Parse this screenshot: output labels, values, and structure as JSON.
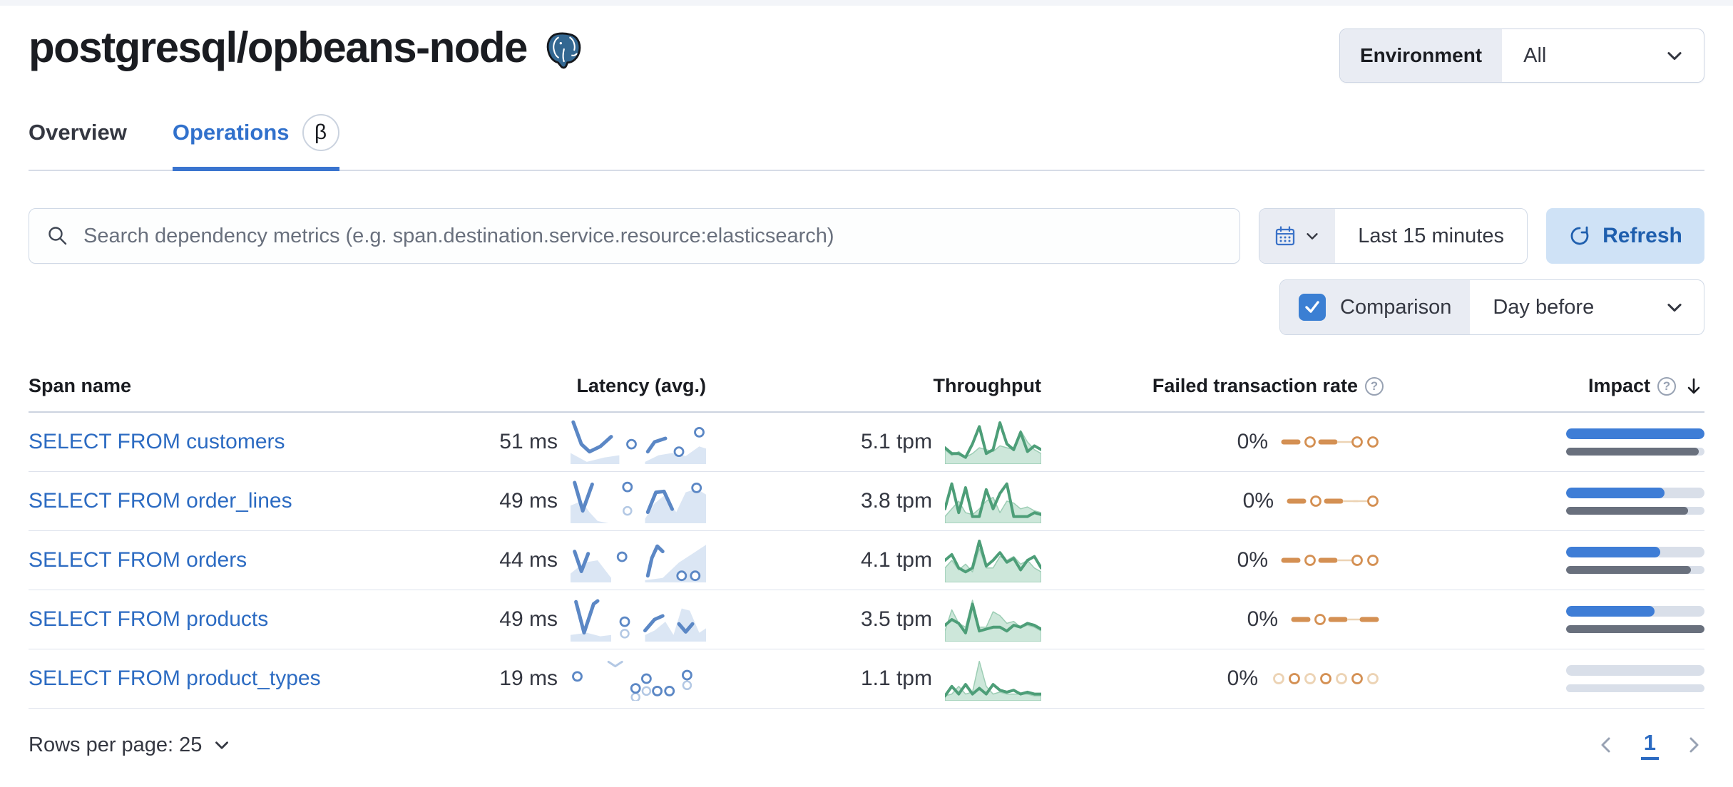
{
  "page": {
    "title": "postgresql/opbeans-node"
  },
  "environment": {
    "label": "Environment",
    "value": "All"
  },
  "tabs": {
    "overview": "Overview",
    "operations": "Operations",
    "beta": "β"
  },
  "toolbar": {
    "search_placeholder": "Search dependency metrics (e.g. span.destination.service.resource:elasticsearch)",
    "time_range": "Last 15 minutes",
    "refresh": "Refresh",
    "comparison_label": "Comparison",
    "comparison_checked": true,
    "comparison_value": "Day before"
  },
  "table": {
    "headers": {
      "span_name": "Span name",
      "latency": "Latency (avg.)",
      "throughput": "Throughput",
      "ftr": "Failed transaction rate",
      "impact": "Impact"
    },
    "rows": [
      {
        "name": "SELECT FROM customers",
        "latency_value": "51 ms",
        "throughput_value": "5.1 tpm",
        "ftr_value": "0%",
        "impact_current": 100,
        "impact_previous": 96,
        "latency_spark": {
          "areas": [
            [
              [
                0,
                0.75
              ],
              [
                0.12,
                0.95
              ],
              [
                0.25,
                0.85
              ],
              [
                0.36,
                0.8
              ],
              [
                0.36,
                1
              ],
              [
                0,
                1
              ]
            ],
            [
              [
                0.55,
                0.95
              ],
              [
                0.65,
                0.8
              ],
              [
                0.75,
                0.75
              ],
              [
                0.85,
                0.82
              ],
              [
                0.95,
                0.6
              ],
              [
                1,
                0.65
              ],
              [
                1,
                1
              ],
              [
                0.55,
                1
              ]
            ]
          ],
          "lines": [
            [
              [
                0.02,
                0.05
              ],
              [
                0.08,
                0.55
              ],
              [
                0.14,
                0.72
              ],
              [
                0.22,
                0.6
              ],
              [
                0.3,
                0.38
              ]
            ],
            [
              [
                0.57,
                0.72
              ],
              [
                0.62,
                0.5
              ],
              [
                0.7,
                0.42
              ]
            ]
          ],
          "dots": [
            [
              0.45,
              0.55
            ],
            [
              0.8,
              0.72
            ],
            [
              0.95,
              0.28
            ]
          ],
          "faint_dots": [],
          "faint_lines": []
        },
        "throughput_spark": {
          "current": [
            0.35,
            0.2,
            0.2,
            0.1,
            0.45,
            0.9,
            0.2,
            0.3,
            1.0,
            0.45,
            0.3,
            0.75,
            0.25,
            0.4,
            0.3
          ],
          "comparison": [
            0.3,
            0.15,
            0.25,
            0.1,
            0.2,
            0.35,
            0.3,
            0.25,
            0.4,
            0.35,
            0.3,
            0.8,
            0.5,
            0.3,
            0.2
          ]
        },
        "ftr_spark": [
          "dash",
          "ring",
          "dash",
          "conn",
          "ring",
          "ring"
        ]
      },
      {
        "name": "SELECT FROM order_lines",
        "latency_value": "49 ms",
        "throughput_value": "3.8 tpm",
        "ftr_value": "0%",
        "impact_current": 71,
        "impact_previous": 88,
        "latency_spark": {
          "areas": [
            [
              [
                0,
                0.6
              ],
              [
                0.08,
                0.5
              ],
              [
                0.14,
                0.75
              ],
              [
                0.2,
                0.95
              ],
              [
                0.28,
                1
              ],
              [
                0,
                1
              ]
            ],
            [
              [
                0.55,
                0.9
              ],
              [
                0.62,
                0.55
              ],
              [
                0.7,
                0.35
              ],
              [
                0.78,
                0.75
              ],
              [
                0.85,
                0.3
              ],
              [
                0.93,
                0.22
              ],
              [
                1,
                0.35
              ],
              [
                1,
                1
              ],
              [
                0.55,
                1
              ]
            ]
          ],
          "lines": [
            [
              [
                0.03,
                0.08
              ],
              [
                0.09,
                0.72
              ],
              [
                0.16,
                0.12
              ]
            ],
            [
              [
                0.57,
                0.75
              ],
              [
                0.63,
                0.3
              ],
              [
                0.69,
                0.28
              ],
              [
                0.75,
                0.68
              ]
            ]
          ],
          "dots": [
            [
              0.42,
              0.18
            ],
            [
              0.93,
              0.2
            ]
          ],
          "faint_dots": [
            [
              0.42,
              0.72
            ]
          ],
          "faint_lines": []
        },
        "throughput_spark": {
          "current": [
            0.3,
            0.95,
            0.2,
            0.85,
            0.1,
            0.1,
            0.8,
            0.3,
            0.7,
            0.95,
            0.1,
            0.1,
            0.1,
            0.2,
            0.15
          ],
          "comparison": [
            0.1,
            0.3,
            0.5,
            0.2,
            0.15,
            0.3,
            0.5,
            0.6,
            0.2,
            0.5,
            0.45,
            0.3,
            0.35,
            0.25,
            0.2
          ]
        },
        "ftr_spark": [
          "dash",
          "ring",
          "dash",
          "conn",
          "conn",
          "ring"
        ]
      },
      {
        "name": "SELECT FROM orders",
        "latency_value": "44 ms",
        "throughput_value": "4.1 tpm",
        "ftr_value": "0%",
        "impact_current": 68,
        "impact_previous": 90,
        "latency_spark": {
          "areas": [
            [
              [
                0,
                0.8
              ],
              [
                0.1,
                0.55
              ],
              [
                0.2,
                0.5
              ],
              [
                0.3,
                0.9
              ],
              [
                0.3,
                1
              ],
              [
                0,
                1
              ]
            ],
            [
              [
                0.55,
                0.95
              ],
              [
                0.68,
                0.9
              ],
              [
                0.8,
                0.55
              ],
              [
                0.9,
                0.35
              ],
              [
                1,
                0.15
              ],
              [
                1,
                1
              ],
              [
                0.55,
                1
              ]
            ]
          ],
          "lines": [
            [
              [
                0.03,
                0.3
              ],
              [
                0.08,
                0.75
              ],
              [
                0.13,
                0.35
              ]
            ],
            [
              [
                0.57,
                0.85
              ],
              [
                0.6,
                0.45
              ],
              [
                0.64,
                0.18
              ],
              [
                0.68,
                0.3
              ]
            ]
          ],
          "dots": [
            [
              0.38,
              0.42
            ],
            [
              0.82,
              0.85
            ],
            [
              0.92,
              0.85
            ]
          ],
          "faint_dots": [],
          "faint_lines": []
        },
        "throughput_spark": {
          "current": [
            0.5,
            0.65,
            0.3,
            0.2,
            0.3,
            1.0,
            0.35,
            0.5,
            0.7,
            0.45,
            0.55,
            0.25,
            0.5,
            0.6,
            0.3
          ],
          "comparison": [
            0.3,
            0.5,
            0.25,
            0.4,
            0.2,
            0.8,
            0.3,
            0.3,
            0.6,
            0.5,
            0.6,
            0.4,
            0.5,
            0.3,
            0.2
          ]
        },
        "ftr_spark": [
          "dash",
          "ring",
          "dash",
          "conn",
          "ring",
          "ring"
        ]
      },
      {
        "name": "SELECT FROM products",
        "latency_value": "49 ms",
        "throughput_value": "3.5 tpm",
        "ftr_value": "0%",
        "impact_current": 64,
        "impact_previous": 100,
        "latency_spark": {
          "areas": [
            [
              [
                0,
                0.85
              ],
              [
                0.12,
                0.8
              ],
              [
                0.22,
                0.88
              ],
              [
                0.3,
                0.85
              ],
              [
                0.3,
                1
              ],
              [
                0,
                1
              ]
            ],
            [
              [
                0.55,
                0.85
              ],
              [
                0.62,
                0.75
              ],
              [
                0.7,
                0.55
              ],
              [
                0.76,
                0.85
              ],
              [
                0.82,
                0.25
              ],
              [
                0.88,
                0.3
              ],
              [
                0.95,
                0.8
              ],
              [
                1,
                0.7
              ],
              [
                1,
                1
              ],
              [
                0.55,
                1
              ]
            ]
          ],
          "lines": [
            [
              [
                0.04,
                0.1
              ],
              [
                0.1,
                0.8
              ],
              [
                0.17,
                0.15
              ],
              [
                0.2,
                0.08
              ]
            ],
            [
              [
                0.55,
                0.75
              ],
              [
                0.62,
                0.5
              ],
              [
                0.68,
                0.42
              ]
            ],
            [
              [
                0.8,
                0.6
              ],
              [
                0.85,
                0.78
              ],
              [
                0.9,
                0.6
              ]
            ]
          ],
          "dots": [
            [
              0.4,
              0.55
            ]
          ],
          "faint_dots": [
            [
              0.4,
              0.82
            ]
          ],
          "faint_lines": []
        },
        "throughput_spark": {
          "current": [
            0.35,
            0.5,
            0.4,
            0.15,
            0.9,
            0.2,
            0.25,
            0.3,
            0.3,
            0.2,
            0.35,
            0.3,
            0.4,
            0.35,
            0.25
          ],
          "comparison": [
            0.2,
            0.75,
            0.4,
            0.3,
            1.0,
            0.3,
            0.3,
            0.7,
            0.6,
            0.4,
            0.45,
            0.3,
            0.35,
            0.3,
            0.2
          ]
        },
        "ftr_spark": [
          "dash",
          "ring",
          "dash",
          "conn",
          "dash"
        ]
      },
      {
        "name": "SELECT FROM product_types",
        "latency_value": "19 ms",
        "throughput_value": "1.1 tpm",
        "ftr_value": "0%",
        "impact_current": 0,
        "impact_previous": 0,
        "latency_spark": {
          "areas": [],
          "lines": [],
          "dots": [
            [
              0.05,
              0.45
            ],
            [
              0.48,
              0.72
            ],
            [
              0.56,
              0.5
            ],
            [
              0.64,
              0.78
            ],
            [
              0.73,
              0.78
            ],
            [
              0.86,
              0.42
            ]
          ],
          "faint_dots": [
            [
              0.48,
              0.92
            ],
            [
              0.56,
              0.78
            ],
            [
              0.86,
              0.65
            ]
          ],
          "faint_lines": [
            [
              [
                0.28,
                0.12
              ],
              [
                0.33,
                0.22
              ],
              [
                0.38,
                0.12
              ]
            ]
          ]
        },
        "throughput_spark": {
          "current": [
            0.05,
            0.3,
            0.1,
            0.35,
            0.1,
            0.25,
            0.1,
            0.35,
            0.2,
            0.15,
            0.2,
            0.1,
            0.15,
            0.1,
            0.1
          ],
          "comparison": [
            0.05,
            0.1,
            0.3,
            0.1,
            0.15,
            0.95,
            0.3,
            0.1,
            0.15,
            0.1,
            0.1,
            0.1,
            0.1,
            0.05,
            0.05
          ]
        },
        "ftr_spark": [
          "ring-f",
          "ring",
          "ring-f",
          "ring",
          "ring-f",
          "ring",
          "ring-f"
        ]
      }
    ]
  },
  "pagination": {
    "rows_per_page": "Rows per page: 25",
    "page": "1"
  },
  "colors": {
    "link_blue": "#2c6bc2",
    "accent_blue": "#3a74cf",
    "bar_blue": "#3e7dd6",
    "bar_gray": "#69707d",
    "bar_track": "#d9dfe9",
    "spark_blue": "#5b87c5",
    "spark_blue_faint": "#b3c8e4",
    "spark_blue_fill": "#dbe6f4",
    "green": "#4d9e78",
    "green_fill": "#cde7da",
    "green_line_faint": "#9ccdb4",
    "orange": "#d49053",
    "orange_faint": "#ecd3b4"
  }
}
